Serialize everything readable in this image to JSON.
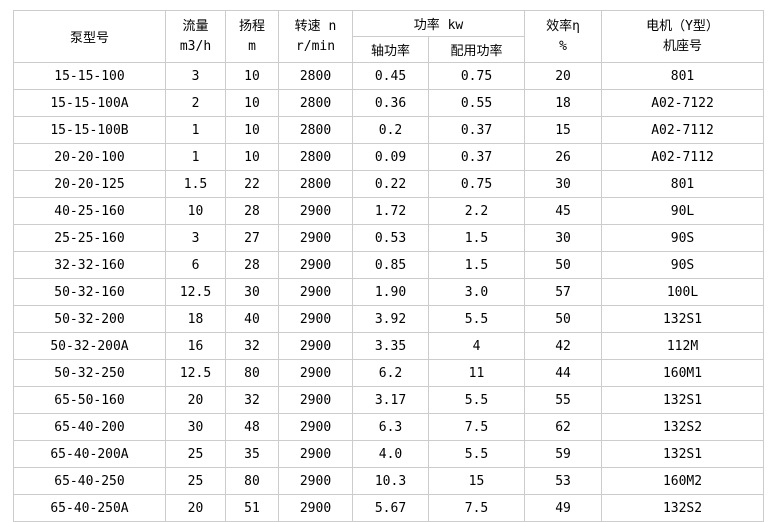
{
  "table": {
    "headers": {
      "pump_model": "泵型号",
      "flow": {
        "line1": "流量",
        "line2": "m3/h"
      },
      "head": {
        "line1": "扬程",
        "line2": "m"
      },
      "speed": {
        "line1": "转速 n",
        "line2": "r/min"
      },
      "power_group": "功率 kw",
      "shaft_power": "轴功率",
      "rated_power": "配用功率",
      "efficiency": {
        "line1": "效率η",
        "line2": "%"
      },
      "motor": {
        "line1": "电机（Y型）",
        "line2": "机座号"
      }
    },
    "column_keys": [
      "pump-model",
      "flow",
      "head",
      "speed",
      "shaft-power",
      "rated-power",
      "efficiency",
      "motor-frame"
    ],
    "rows": [
      [
        "15-15-100",
        "3",
        "10",
        "2800",
        "0.45",
        "0.75",
        "20",
        "801"
      ],
      [
        "15-15-100A",
        "2",
        "10",
        "2800",
        "0.36",
        "0.55",
        "18",
        "A02-7122"
      ],
      [
        "15-15-100B",
        "1",
        "10",
        "2800",
        "0.2",
        "0.37",
        "15",
        "A02-7112"
      ],
      [
        "20-20-100",
        "1",
        "10",
        "2800",
        "0.09",
        "0.37",
        "26",
        "A02-7112"
      ],
      [
        "20-20-125",
        "1.5",
        "22",
        "2800",
        "0.22",
        "0.75",
        "30",
        "801"
      ],
      [
        "40-25-160",
        "10",
        "28",
        "2900",
        "1.72",
        "2.2",
        "45",
        "90L"
      ],
      [
        "25-25-160",
        "3",
        "27",
        "2900",
        "0.53",
        "1.5",
        "30",
        "90S"
      ],
      [
        "32-32-160",
        "6",
        "28",
        "2900",
        "0.85",
        "1.5",
        "50",
        "90S"
      ],
      [
        "50-32-160",
        "12.5",
        "30",
        "2900",
        "1.90",
        "3.0",
        "57",
        "100L"
      ],
      [
        "50-32-200",
        "18",
        "40",
        "2900",
        "3.92",
        "5.5",
        "50",
        "132S1"
      ],
      [
        "50-32-200A",
        "16",
        "32",
        "2900",
        "3.35",
        "4",
        "42",
        "112M"
      ],
      [
        "50-32-250",
        "12.5",
        "80",
        "2900",
        "6.2",
        "11",
        "44",
        "160M1"
      ],
      [
        "65-50-160",
        "20",
        "32",
        "2900",
        "3.17",
        "5.5",
        "55",
        "132S1"
      ],
      [
        "65-40-200",
        "30",
        "48",
        "2900",
        "6.3",
        "7.5",
        "62",
        "132S2"
      ],
      [
        "65-40-200A",
        "25",
        "35",
        "2900",
        "4.0",
        "5.5",
        "59",
        "132S1"
      ],
      [
        "65-40-250",
        "25",
        "80",
        "2900",
        "10.3",
        "15",
        "53",
        "160M2"
      ],
      [
        "65-40-250A",
        "20",
        "51",
        "2900",
        "5.67",
        "7.5",
        "49",
        "132S2"
      ]
    ]
  },
  "colors": {
    "border": "#cccccc",
    "background": "#ffffff",
    "text": "#000000"
  }
}
